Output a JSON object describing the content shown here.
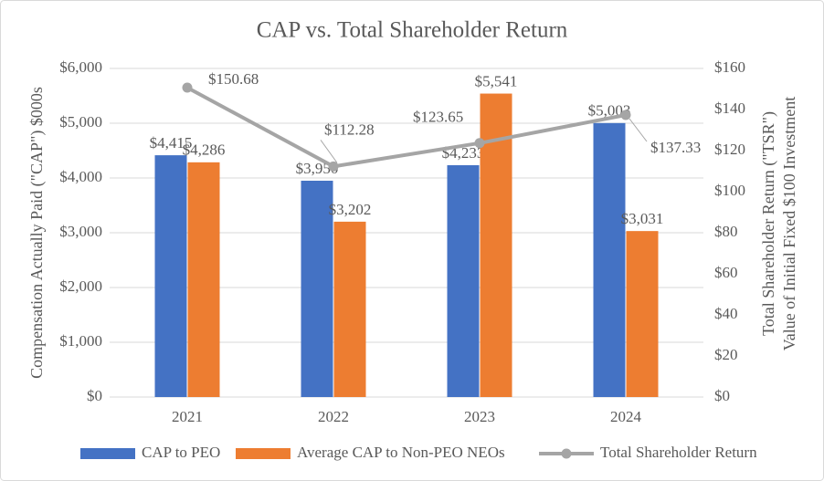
{
  "chart_data": {
    "type": "bar_line",
    "title": "CAP vs. Total Shareholder Return",
    "y_label": "Compensation Actually Paid (\"CAP\") $000s",
    "y2_label": [
      "Total Shareholder Return (\"TSR\")",
      "Value of Initial Fixed $100 Investment"
    ],
    "categories": [
      "2021",
      "2022",
      "2023",
      "2024"
    ],
    "series": [
      {
        "name": "CAP to PEO",
        "type": "bar",
        "color": "#4472c4",
        "values": [
          4415,
          3950,
          4233,
          5003
        ],
        "value_labels": [
          "$4,415",
          "$3,950",
          "$4,233",
          "$5,003"
        ]
      },
      {
        "name": "Average CAP to Non-PEO NEOs",
        "type": "bar",
        "color": "#ed7d31",
        "values": [
          4286,
          3202,
          5541,
          3031
        ],
        "value_labels": [
          "$4,286",
          "$3,202",
          "$5,541",
          "$3,031"
        ]
      },
      {
        "name": "Total Shareholder Return",
        "type": "line",
        "axis": "y2",
        "color": "#a5a5a5",
        "values": [
          150.68,
          112.28,
          123.65,
          137.33
        ],
        "value_labels": [
          "$150.68",
          "$112.28",
          "$123.65",
          "$137.33"
        ]
      }
    ],
    "ylim": [
      0,
      6000
    ],
    "yticks": [
      {
        "value": 0,
        "label": "$0"
      },
      {
        "value": 1000,
        "label": "$1,000"
      },
      {
        "value": 2000,
        "label": "$2,000"
      },
      {
        "value": 3000,
        "label": "$3,000"
      },
      {
        "value": 4000,
        "label": "$4,000"
      },
      {
        "value": 5000,
        "label": "$5,000"
      },
      {
        "value": 6000,
        "label": "$6,000"
      }
    ],
    "y2lim": [
      0,
      160
    ],
    "y2ticks": [
      {
        "value": 0,
        "label": "$0"
      },
      {
        "value": 20,
        "label": "$20"
      },
      {
        "value": 40,
        "label": "$40"
      },
      {
        "value": 60,
        "label": "$60"
      },
      {
        "value": 80,
        "label": "$80"
      },
      {
        "value": 100,
        "label": "$100"
      },
      {
        "value": 120,
        "label": "$120"
      },
      {
        "value": 140,
        "label": "$140"
      },
      {
        "value": 160,
        "label": "$160"
      }
    ],
    "grid": true,
    "legend": "bottom"
  }
}
